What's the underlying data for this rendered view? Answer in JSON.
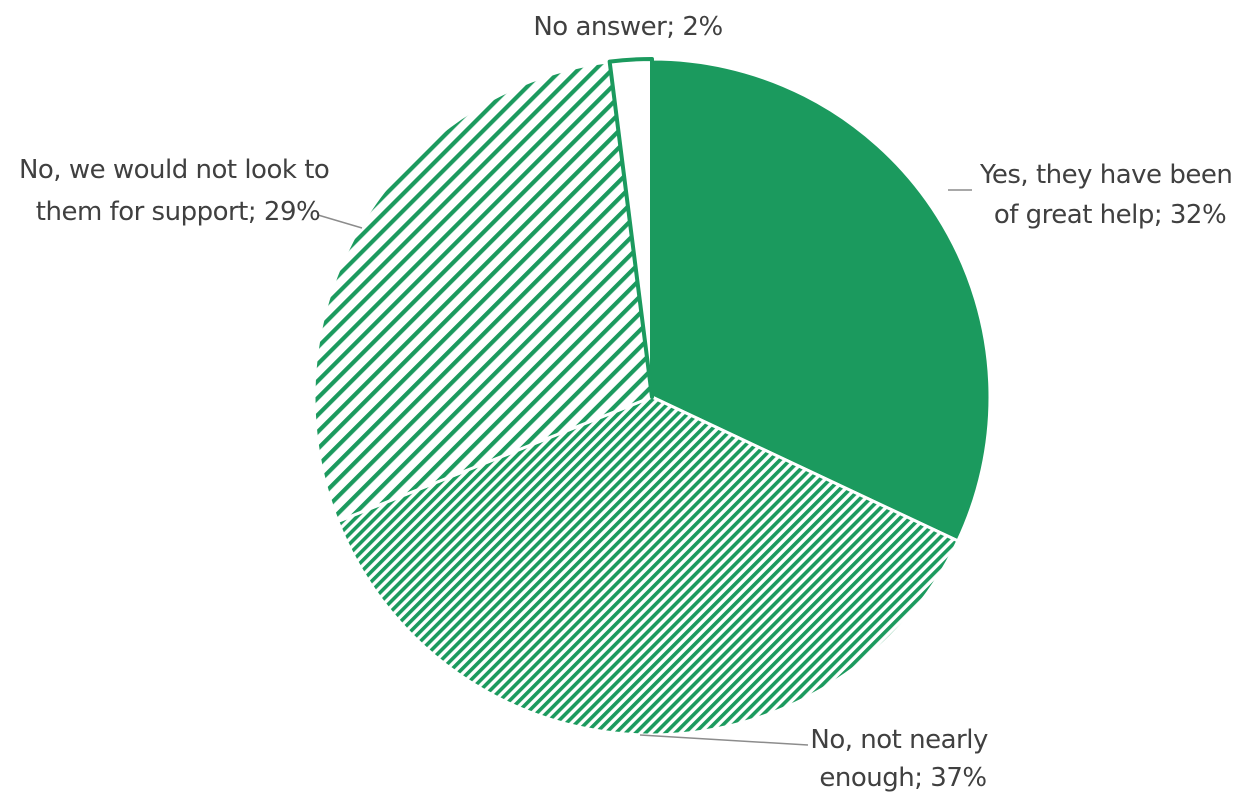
{
  "chart_data": {
    "type": "pie",
    "slices": [
      {
        "label": "Yes, they have been of great help; 32%",
        "category": "Yes, they have been of great help",
        "value": 32,
        "fill": "solid"
      },
      {
        "label": "No, not nearly enough; 37%",
        "category": "No, not nearly enough",
        "value": 37,
        "fill": "dense-hatch"
      },
      {
        "label": "No, we would not look to them for support; 29%",
        "category": "No, we would not look to them for support",
        "value": 29,
        "fill": "wide-hatch"
      },
      {
        "label": "No answer; 2%",
        "category": "No answer",
        "value": 2,
        "fill": "white"
      }
    ],
    "colors": {
      "accent": "#1b9a5e",
      "outline": "#ffffff"
    }
  },
  "labels": {
    "yes": [
      "Yes, they have been",
      "of great help; 32%"
    ],
    "not_enough": [
      "No, not nearly",
      "enough; 37%"
    ],
    "would_not": [
      "No, we would not look to",
      "them for support; 29%"
    ],
    "no_answer": [
      "No answer; 2%"
    ]
  }
}
